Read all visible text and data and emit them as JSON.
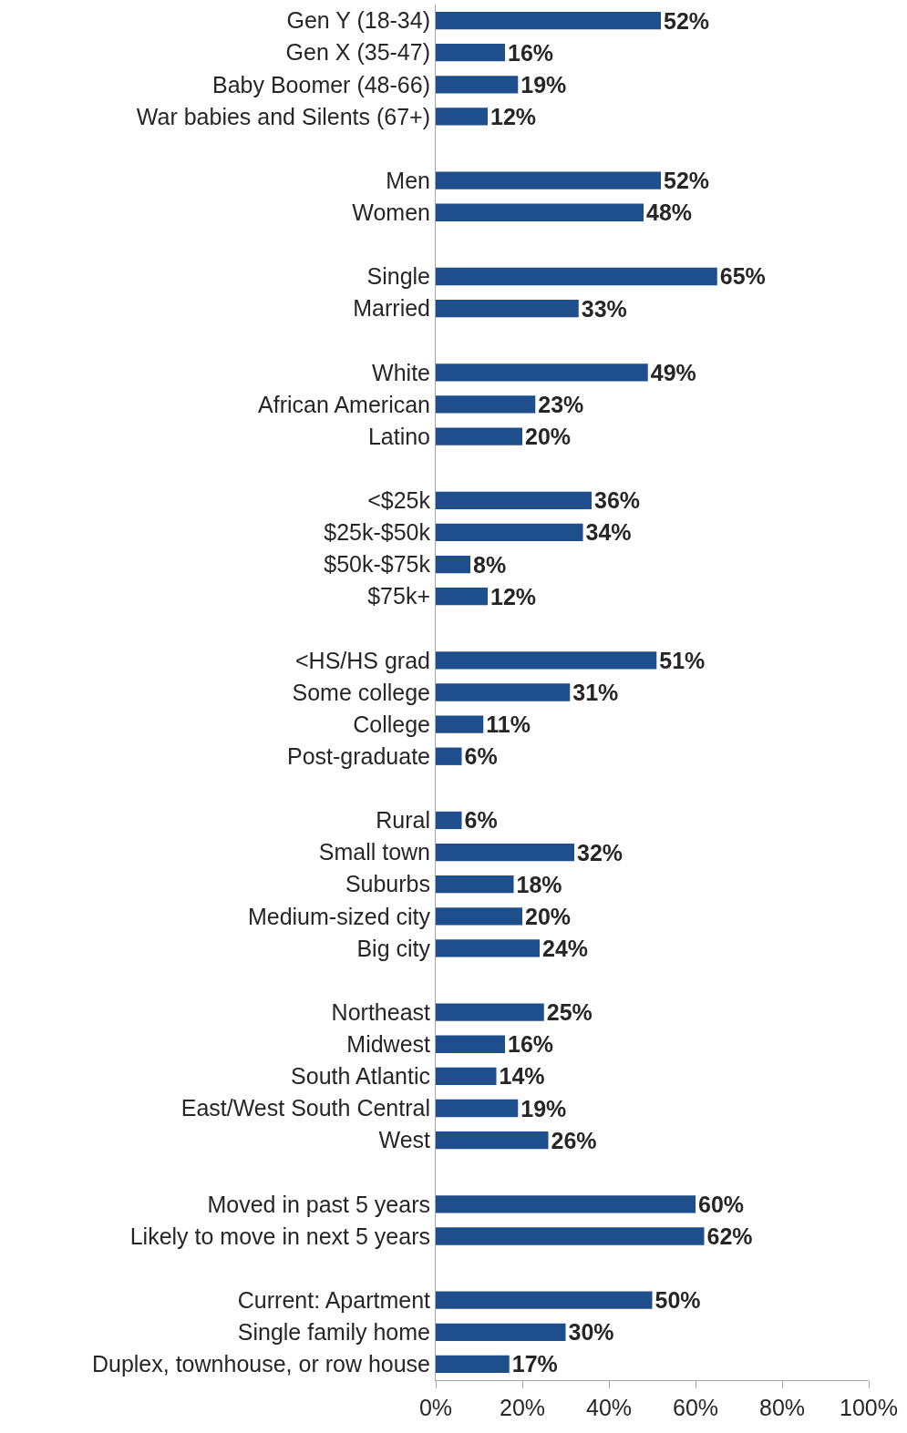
{
  "chart_data": {
    "type": "bar",
    "orientation": "horizontal",
    "categories": [
      "Gen Y (18-34)",
      "Gen X (35-47)",
      "Baby Boomer (48-66)",
      "War babies and Silents (67+)",
      null,
      "Men",
      "Women",
      null,
      "Single",
      "Married",
      null,
      "White",
      "African American",
      "Latino",
      null,
      "<$25k",
      "$25k-$50k",
      "$50k-$75k",
      "$75k+",
      null,
      "<HS/HS grad",
      "Some college",
      "College",
      "Post-graduate",
      null,
      "Rural",
      "Small town",
      "Suburbs",
      "Medium-sized city",
      "Big city",
      null,
      "Northeast",
      "Midwest",
      "South Atlantic",
      "East/West South Central",
      "West",
      null,
      "Moved in past 5 years",
      "Likely to move in next 5 years",
      null,
      "Current: Apartment",
      "Single family home",
      "Duplex, townhouse, or row house"
    ],
    "values": [
      52,
      16,
      19,
      12,
      null,
      52,
      48,
      null,
      65,
      33,
      null,
      49,
      23,
      20,
      null,
      36,
      34,
      8,
      12,
      null,
      51,
      31,
      11,
      6,
      null,
      6,
      32,
      18,
      20,
      24,
      null,
      25,
      16,
      14,
      19,
      26,
      null,
      60,
      62,
      null,
      50,
      30,
      17
    ],
    "value_labels": [
      "52%",
      "16%",
      "19%",
      "12%",
      null,
      "52%",
      "48%",
      null,
      "65%",
      "33%",
      null,
      "49%",
      "23%",
      "20%",
      null,
      "36%",
      "34%",
      "8%",
      "12%",
      null,
      "51%",
      "31%",
      "11%",
      "6%",
      null,
      "6%",
      "32%",
      "18%",
      "20%",
      "24%",
      null,
      "25%",
      "16%",
      "14%",
      "19%",
      "26%",
      null,
      "60%",
      "62%",
      null,
      "50%",
      "30%",
      "17%"
    ],
    "color": "#1f4e8c",
    "xlim": [
      0,
      100
    ],
    "xticks": [
      {
        "value": 0,
        "label": "0%"
      },
      {
        "value": 20,
        "label": "20%"
      },
      {
        "value": 40,
        "label": "40%"
      },
      {
        "value": 60,
        "label": "60%"
      },
      {
        "value": 80,
        "label": "80%"
      },
      {
        "value": 100,
        "label": "100%"
      }
    ],
    "legend": false
  }
}
